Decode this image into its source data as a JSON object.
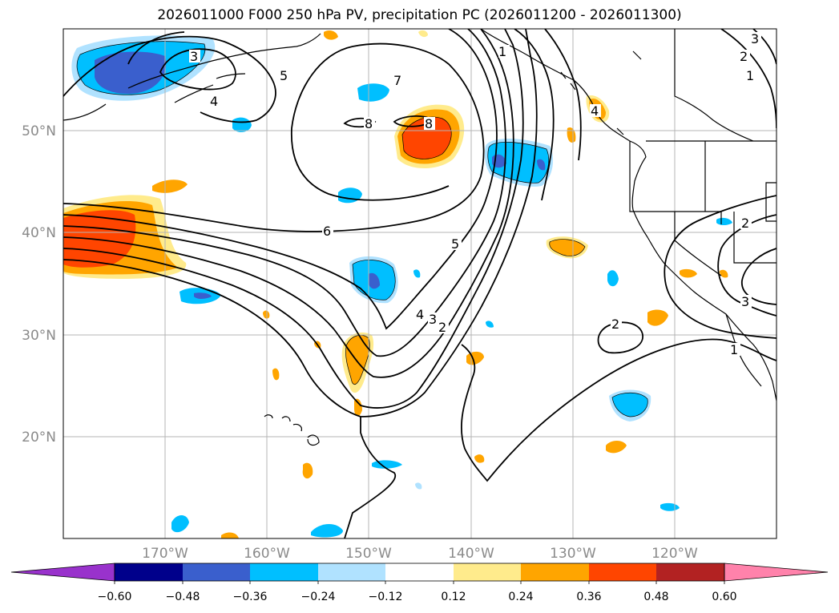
{
  "figure": {
    "title": "2026011000 F000 250 hPa PV, precipitation PC (2026011200 - 2026011300)"
  },
  "map": {
    "projection": "plate-carree",
    "region": "North Pacific / west coast of North America",
    "extent": {
      "lon_min": -180,
      "lon_max": -110,
      "lat_min": 10,
      "lat_max": 60
    },
    "lat_tick_labels": [
      "50°N",
      "40°N",
      "30°N",
      "20°N"
    ],
    "lon_tick_labels": [
      "170°W",
      "160°W",
      "150°W",
      "140°W",
      "130°W",
      "120°W"
    ],
    "grid": true,
    "colors": {
      "coastline": "#000000",
      "contour": "#000000",
      "grid": "#b4b4b4",
      "tick_label": "#8a8a8a"
    }
  },
  "pv_contours": {
    "field": "250 hPa PV",
    "line_color": "#000000",
    "labels": [
      "1",
      "2",
      "3",
      "4",
      "5",
      "6",
      "7",
      "8",
      "8",
      "5",
      "4",
      "3",
      "2",
      "2",
      "1",
      "2",
      "3",
      "1",
      "3",
      "4"
    ]
  },
  "precip_pc_shading": {
    "field": "precipitation PC",
    "features": [
      {
        "sign": "negative",
        "peak": -0.48,
        "near": "Gulf of Alaska NW corner (≈172°W, 56°N)"
      },
      {
        "sign": "positive",
        "peak": 0.48,
        "near": "west edge (≈177°W, 39°N)"
      },
      {
        "sign": "positive",
        "peak": 0.48,
        "near": "≈144°W, 50°N"
      },
      {
        "sign": "negative",
        "peak": -0.48,
        "near": "≈135°W, 48°N"
      },
      {
        "sign": "negative",
        "peak": -0.48,
        "near": "≈149°W, 35°N"
      },
      {
        "sign": "positive",
        "peak": 0.36,
        "near": "≈148°W, 28°N"
      },
      {
        "sign": "negative",
        "peak": -0.36,
        "near": "≈125°W, 23°N"
      },
      {
        "sign": "positive",
        "peak": 0.36,
        "near": "≈130°W, 39°N"
      }
    ]
  },
  "colorbar": {
    "tick_labels": [
      "−0.60",
      "−0.48",
      "−0.36",
      "−0.24",
      "−0.12",
      "0.12",
      "0.24",
      "0.36",
      "0.48",
      "0.60"
    ],
    "levels": [
      -0.6,
      -0.48,
      -0.36,
      -0.24,
      -0.12,
      0.12,
      0.24,
      0.36,
      0.48,
      0.6
    ],
    "extend": "both",
    "colors": [
      "#9932cc",
      "#00008b",
      "#3a5fcd",
      "#00bfff",
      "#b0e2ff",
      "#ffffff",
      "#ffeb8c",
      "#ffa500",
      "#ff4500",
      "#b22222",
      "#ff82ab"
    ]
  }
}
